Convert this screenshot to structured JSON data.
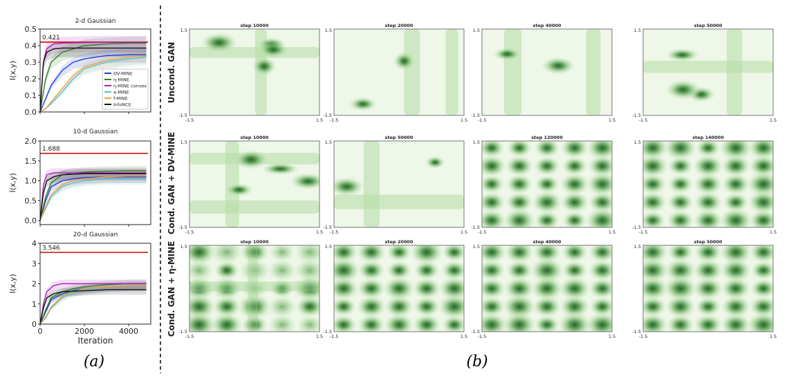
{
  "panel_a_caption": "(a)",
  "panel_b_caption": "(b)",
  "colors": {
    "DV-MINE": "#1f3ddd",
    "eta-MINE": "#2f7d1f",
    "eta-MINE convex": "#b020c0",
    "a-MINE": "#4ec3d6",
    "f-MINE": "#f0a040",
    "InfoNCE": "#111111",
    "true_mi": "#d62020",
    "density_light": "#eef7e8",
    "density_dark": "#1d5a1d"
  },
  "chart_data": [
    {
      "type": "line",
      "title": "2-d Gaussian",
      "xlabel": "",
      "ylabel": "I(x,y)",
      "xlim": [
        0,
        5000
      ],
      "ylim": [
        0,
        0.5
      ],
      "yticks": [
        "0.0",
        "0.1",
        "0.2",
        "0.3",
        "0.4",
        "0.5"
      ],
      "xticks": [],
      "reference_line": {
        "value": 0.421,
        "label": "0.421"
      },
      "legend": {
        "position": "center-right",
        "entries": [
          "DV-MINE",
          "η-MINE",
          "η-MINE convex",
          "a-MINE",
          "f-MINE",
          "InfoNCE"
        ]
      },
      "series": [
        {
          "name": "DV-MINE",
          "x": [
            0,
            250,
            500,
            1000,
            1500,
            2000,
            3000,
            4000,
            4800
          ],
          "y": [
            0.0,
            0.08,
            0.16,
            0.25,
            0.3,
            0.32,
            0.34,
            0.345,
            0.345
          ]
        },
        {
          "name": "η-MINE",
          "x": [
            0,
            250,
            500,
            1000,
            1500,
            2000,
            3000,
            4000,
            4800
          ],
          "y": [
            0.0,
            0.2,
            0.3,
            0.36,
            0.38,
            0.4,
            0.41,
            0.415,
            0.415
          ]
        },
        {
          "name": "η-MINE convex",
          "x": [
            0,
            150,
            300,
            600,
            1000,
            2000,
            3000,
            4000,
            4800
          ],
          "y": [
            0.0,
            0.3,
            0.38,
            0.41,
            0.415,
            0.418,
            0.42,
            0.42,
            0.42
          ]
        },
        {
          "name": "a-MINE",
          "x": [
            0,
            250,
            500,
            1000,
            1500,
            2000,
            3000,
            4000,
            4800
          ],
          "y": [
            0.0,
            0.02,
            0.05,
            0.12,
            0.2,
            0.26,
            0.3,
            0.32,
            0.33
          ]
        },
        {
          "name": "f-MINE",
          "x": [
            0,
            250,
            500,
            1000,
            1500,
            2000,
            3000,
            4000,
            4800
          ],
          "y": [
            0.0,
            0.02,
            0.06,
            0.14,
            0.22,
            0.27,
            0.31,
            0.33,
            0.34
          ]
        },
        {
          "name": "InfoNCE",
          "x": [
            0,
            150,
            300,
            600,
            1000,
            2000,
            3000,
            4000,
            4800
          ],
          "y": [
            0.0,
            0.3,
            0.36,
            0.38,
            0.385,
            0.385,
            0.385,
            0.385,
            0.385
          ]
        }
      ]
    },
    {
      "type": "line",
      "title": "10-d Gaussian",
      "xlabel": "",
      "ylabel": "I(x,y)",
      "xlim": [
        0,
        5000
      ],
      "ylim": [
        -0.1,
        2.0
      ],
      "yticks": [
        "0.0",
        "0.5",
        "1.0",
        "1.5",
        "2.0"
      ],
      "xticks": [],
      "reference_line": {
        "value": 1.688,
        "label": "1.688"
      },
      "series": [
        {
          "name": "DV-MINE",
          "x": [
            0,
            250,
            500,
            1000,
            1500,
            2000,
            3000,
            4000,
            4800
          ],
          "y": [
            0.0,
            0.5,
            0.85,
            1.0,
            1.05,
            1.08,
            1.1,
            1.1,
            1.1
          ]
        },
        {
          "name": "η-MINE",
          "x": [
            0,
            250,
            500,
            1000,
            1500,
            2000,
            3000,
            4000,
            4800
          ],
          "y": [
            0.0,
            0.6,
            0.95,
            1.15,
            1.2,
            1.22,
            1.24,
            1.25,
            1.25
          ]
        },
        {
          "name": "η-MINE convex",
          "x": [
            0,
            150,
            300,
            600,
            1000,
            2000,
            3000,
            4000,
            4800
          ],
          "y": [
            0.0,
            0.9,
            1.15,
            1.2,
            1.2,
            1.2,
            1.2,
            1.2,
            1.2
          ]
        },
        {
          "name": "a-MINE",
          "x": [
            0,
            250,
            500,
            1000,
            1500,
            2000,
            3000,
            4000,
            4800
          ],
          "y": [
            0.0,
            0.3,
            0.6,
            0.85,
            0.95,
            1.0,
            1.05,
            1.05,
            1.05
          ]
        },
        {
          "name": "f-MINE",
          "x": [
            0,
            250,
            500,
            1000,
            1500,
            2000,
            3000,
            4000,
            4800
          ],
          "y": [
            0.0,
            0.35,
            0.65,
            0.9,
            1.0,
            1.05,
            1.1,
            1.12,
            1.12
          ]
        },
        {
          "name": "InfoNCE",
          "x": [
            0,
            150,
            300,
            600,
            1000,
            2000,
            3000,
            4000,
            4800
          ],
          "y": [
            0.0,
            0.7,
            1.0,
            1.1,
            1.15,
            1.18,
            1.18,
            1.18,
            1.18
          ]
        }
      ]
    },
    {
      "type": "line",
      "title": "20-d Gaussian",
      "xlabel": "Iteration",
      "ylabel": "I(x,y)",
      "xlim": [
        0,
        5000
      ],
      "ylim": [
        0,
        4
      ],
      "yticks": [
        "0",
        "1",
        "2",
        "3",
        "4"
      ],
      "xticks": [
        "0",
        "2000",
        "4000"
      ],
      "reference_line": {
        "value": 3.546,
        "label": "3.546"
      },
      "series": [
        {
          "name": "DV-MINE",
          "x": [
            0,
            250,
            500,
            1000,
            1500,
            2000,
            3000,
            4000,
            4800
          ],
          "y": [
            0.0,
            0.6,
            1.2,
            1.5,
            1.65,
            1.75,
            1.85,
            1.9,
            1.9
          ]
        },
        {
          "name": "η-MINE",
          "x": [
            0,
            250,
            500,
            1000,
            1500,
            2000,
            3000,
            4000,
            4800
          ],
          "y": [
            0.0,
            0.7,
            1.3,
            1.6,
            1.75,
            1.85,
            1.95,
            2.0,
            2.0
          ]
        },
        {
          "name": "η-MINE convex",
          "x": [
            0,
            150,
            300,
            600,
            1000,
            2000,
            3000,
            4000,
            4800
          ],
          "y": [
            0.0,
            1.0,
            1.6,
            1.9,
            2.0,
            2.0,
            2.0,
            2.0,
            2.0
          ]
        },
        {
          "name": "a-MINE",
          "x": [
            0,
            250,
            500,
            1000,
            1500,
            2000,
            3000,
            4000,
            4800
          ],
          "y": [
            0.0,
            0.3,
            0.8,
            1.3,
            1.55,
            1.7,
            1.85,
            1.9,
            1.9
          ]
        },
        {
          "name": "f-MINE",
          "x": [
            0,
            250,
            500,
            1000,
            1500,
            2000,
            3000,
            4000,
            4800
          ],
          "y": [
            0.0,
            0.35,
            0.85,
            1.35,
            1.6,
            1.75,
            1.85,
            1.9,
            1.9
          ]
        },
        {
          "name": "InfoNCE",
          "x": [
            0,
            150,
            300,
            600,
            1000,
            2000,
            3000,
            4000,
            4800
          ],
          "y": [
            0.0,
            0.8,
            1.3,
            1.5,
            1.6,
            1.65,
            1.7,
            1.7,
            1.7
          ]
        }
      ]
    },
    {
      "type": "heatmap",
      "rows": [
        {
          "label": "Uncond. GAN",
          "plots": [
            {
              "title": "step 10000",
              "pattern": "sparse"
            },
            {
              "title": "step 20000",
              "pattern": "sparse"
            },
            {
              "title": "step 40000",
              "pattern": "sparse"
            },
            {
              "title": "step 50000",
              "pattern": "sparse"
            }
          ]
        },
        {
          "label": "Cond. GAN + DV-MINE",
          "plots": [
            {
              "title": "step 10000",
              "pattern": "sparse"
            },
            {
              "title": "step 50000",
              "pattern": "sparse"
            },
            {
              "title": "step 120000",
              "pattern": "grid"
            },
            {
              "title": "step 140000",
              "pattern": "grid"
            }
          ]
        },
        {
          "label": "Cond. GAN + η-MINE",
          "plots": [
            {
              "title": "step 10000",
              "pattern": "partial"
            },
            {
              "title": "step 20000",
              "pattern": "grid"
            },
            {
              "title": "step 40000",
              "pattern": "grid"
            },
            {
              "title": "step 50000",
              "pattern": "grid"
            }
          ]
        }
      ],
      "axis_min_label": "-1.5",
      "axis_max_label": "1.5"
    }
  ]
}
